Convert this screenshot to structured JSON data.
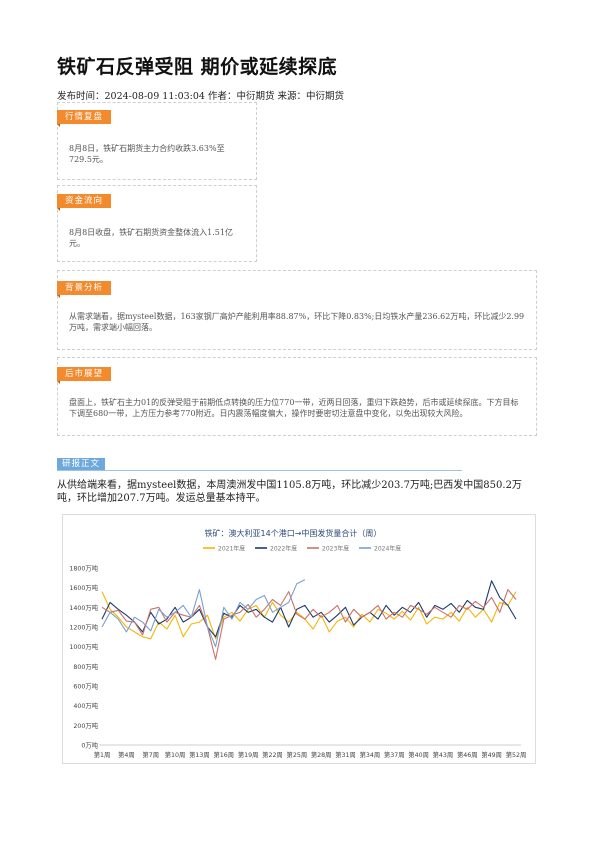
{
  "article": {
    "title": "铁矿石反弹受阻 期价或延续探底",
    "meta": "发布时间：2024-08-09 11:03:04 作者：中衍期货 来源：中衍期货"
  },
  "sections": [
    {
      "label": "行情复盘",
      "text": "8月8日，铁矿石期货主力合约收跌3.63%至729.5元。"
    },
    {
      "label": "资金流向",
      "text": "8月8日收盘，铁矿石期货资金整体流入1.51亿元。"
    },
    {
      "label": "背景分析",
      "text": "从需求端看，据mysteel数据，163家钢厂高炉产能利用率88.87%，环比下降0.83%;日均铁水产量236.62万吨，环比减少2.99万吨，需求端小幅回落。"
    },
    {
      "label": "后市展望",
      "text": "盘面上，铁矿石主力01的反弹受阻于前期低点转换的压力位770一带，近两日回落，重归下跌趋势，后市或延续探底。下方目标下调至680一带，上方压力参考770附近。日内震荡幅度偏大，操作时要密切注意盘中变化，以免出现较大风险。"
    }
  ],
  "report": {
    "label": "研报正文",
    "body": "从供给端来看，据mysteel数据，本周澳洲发中国1105.8万吨，环比减少203.7万吨;巴西发中国850.2万吨，环比增加207.7万吨。发运总量基本持平。"
  },
  "colors": {
    "section_tab": "#F28A2E",
    "report_tab": "#6FA8DC"
  },
  "chart_data": {
    "type": "line",
    "title": "铁矿：澳大利亚14个港口→中国发货量合计（周）",
    "xlabel": "",
    "ylabel": "",
    "x_range": [
      1,
      52
    ],
    "ylim": [
      0,
      1800
    ],
    "y_ticks": [
      0,
      200,
      400,
      600,
      800,
      1000,
      1200,
      1400,
      1600,
      1800
    ],
    "y_tick_labels": [
      "0万吨",
      "200万吨",
      "400万吨",
      "600万吨",
      "800万吨",
      "1000万吨",
      "1200万吨",
      "1400万吨",
      "1600万吨",
      "1800万吨"
    ],
    "x_ticks": [
      1,
      4,
      7,
      10,
      13,
      16,
      19,
      22,
      25,
      28,
      31,
      34,
      37,
      40,
      43,
      46,
      49,
      52
    ],
    "x_tick_labels": [
      "第1周",
      "第4周",
      "第7周",
      "第10周",
      "第13周",
      "第16周",
      "第19周",
      "第22周",
      "第25周",
      "第28周",
      "第31周",
      "第34周",
      "第37周",
      "第40周",
      "第43周",
      "第46周",
      "第49周",
      "第52周"
    ],
    "grid": false,
    "legend_position": "top",
    "series": [
      {
        "name": "2021年度",
        "color": "#F2B705",
        "values": [
          1560,
          1380,
          1300,
          1200,
          1150,
          1100,
          1080,
          1250,
          1180,
          1320,
          1100,
          1230,
          1250,
          1320,
          1080,
          1300,
          1350,
          1260,
          1380,
          1420,
          1300,
          1450,
          1320,
          1250,
          1350,
          1280,
          1180,
          1320,
          1150,
          1260,
          1300,
          1200,
          1330,
          1250,
          1380,
          1340,
          1280,
          1360,
          1270,
          1400,
          1230,
          1300,
          1280,
          1350,
          1260,
          1400,
          1300,
          1380,
          1250,
          1450,
          1420,
          1560
        ]
      },
      {
        "name": "2022年度",
        "color": "#1F3A6E",
        "values": [
          1280,
          1450,
          1380,
          1320,
          1250,
          1150,
          1350,
          1230,
          1280,
          1400,
          1250,
          1300,
          1380,
          1200,
          1100,
          1340,
          1300,
          1420,
          1350,
          1380,
          1300,
          1250,
          1400,
          1200,
          1380,
          1420,
          1300,
          1350,
          1250,
          1320,
          1400,
          1220,
          1300,
          1350,
          1280,
          1420,
          1320,
          1400,
          1350,
          1450,
          1300,
          1420,
          1380,
          1440,
          1350,
          1470,
          1400,
          1380,
          1670,
          1500,
          1420,
          1280
        ]
      },
      {
        "name": "2023年度",
        "color": "#C9736B",
        "values": [
          1400,
          1350,
          1370,
          1260,
          1250,
          1120,
          1380,
          1400,
          1250,
          1350,
          1320,
          1300,
          1420,
          1200,
          870,
          1280,
          1320,
          1350,
          1430,
          1300,
          1380,
          1480,
          1420,
          1560,
          1330,
          1280,
          1380,
          1300,
          1350,
          1420,
          1250,
          1380,
          1300,
          1350,
          1420,
          1280,
          1350,
          1300,
          1420,
          1380,
          1330,
          1400,
          1350,
          1300,
          1420,
          1380,
          1460,
          1400,
          1500,
          1350,
          1580,
          1480
        ]
      },
      {
        "name": "2024年度",
        "color": "#7C9FCE",
        "values": [
          1200,
          1350,
          1280,
          1150,
          1300,
          1250,
          1160,
          1380,
          1300,
          1350,
          1420,
          1300,
          1580,
          1200,
          1000,
          1400,
          1280,
          1450,
          1380,
          1480,
          1520,
          1350,
          1400,
          1450,
          1640,
          1680
        ]
      }
    ]
  }
}
